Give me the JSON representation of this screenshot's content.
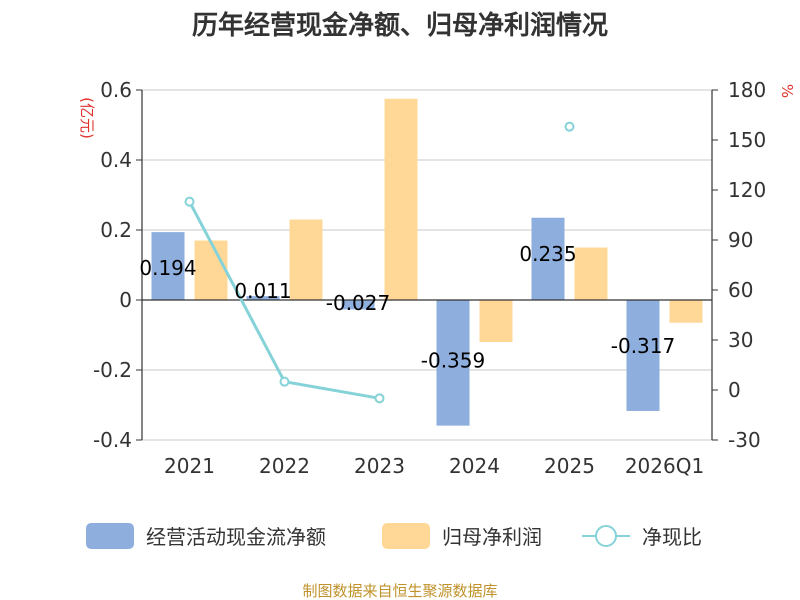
{
  "chart_data": {
    "type": "bar",
    "title": "历年经营现金净额、归母净利润情况",
    "categories": [
      "2021",
      "2022",
      "2023",
      "2024",
      "2025",
      "2026Q1"
    ],
    "y_left": {
      "unit": "(亿元)",
      "ticks": [
        "0.6",
        "0.4",
        "0.2",
        "0",
        "-0.2",
        "-0.4"
      ],
      "lim": [
        -0.4,
        0.6
      ]
    },
    "y_right": {
      "unit": "%",
      "ticks": [
        "180",
        "150",
        "120",
        "90",
        "60",
        "30",
        "0",
        "-30"
      ],
      "lim": [
        -30,
        180
      ]
    },
    "series": [
      {
        "name": "经营活动现金流净额",
        "type": "bar",
        "color": "#8eaedd",
        "values": [
          0.194,
          0.011,
          -0.027,
          -0.359,
          0.235,
          -0.317
        ],
        "labels": [
          "0.194",
          "0.011",
          "-0.027",
          "-0.359",
          "0.235",
          "-0.317"
        ]
      },
      {
        "name": "归母净利润",
        "type": "bar",
        "color": "#ffd898",
        "values": [
          0.17,
          0.23,
          0.575,
          -0.12,
          0.15,
          -0.065
        ]
      },
      {
        "name": "净现比",
        "type": "line",
        "axis": "right",
        "color": "#85d3d8",
        "values": [
          113,
          5,
          -5,
          null,
          158,
          null
        ]
      }
    ],
    "source": "制图数据来自恒生聚源数据库"
  }
}
